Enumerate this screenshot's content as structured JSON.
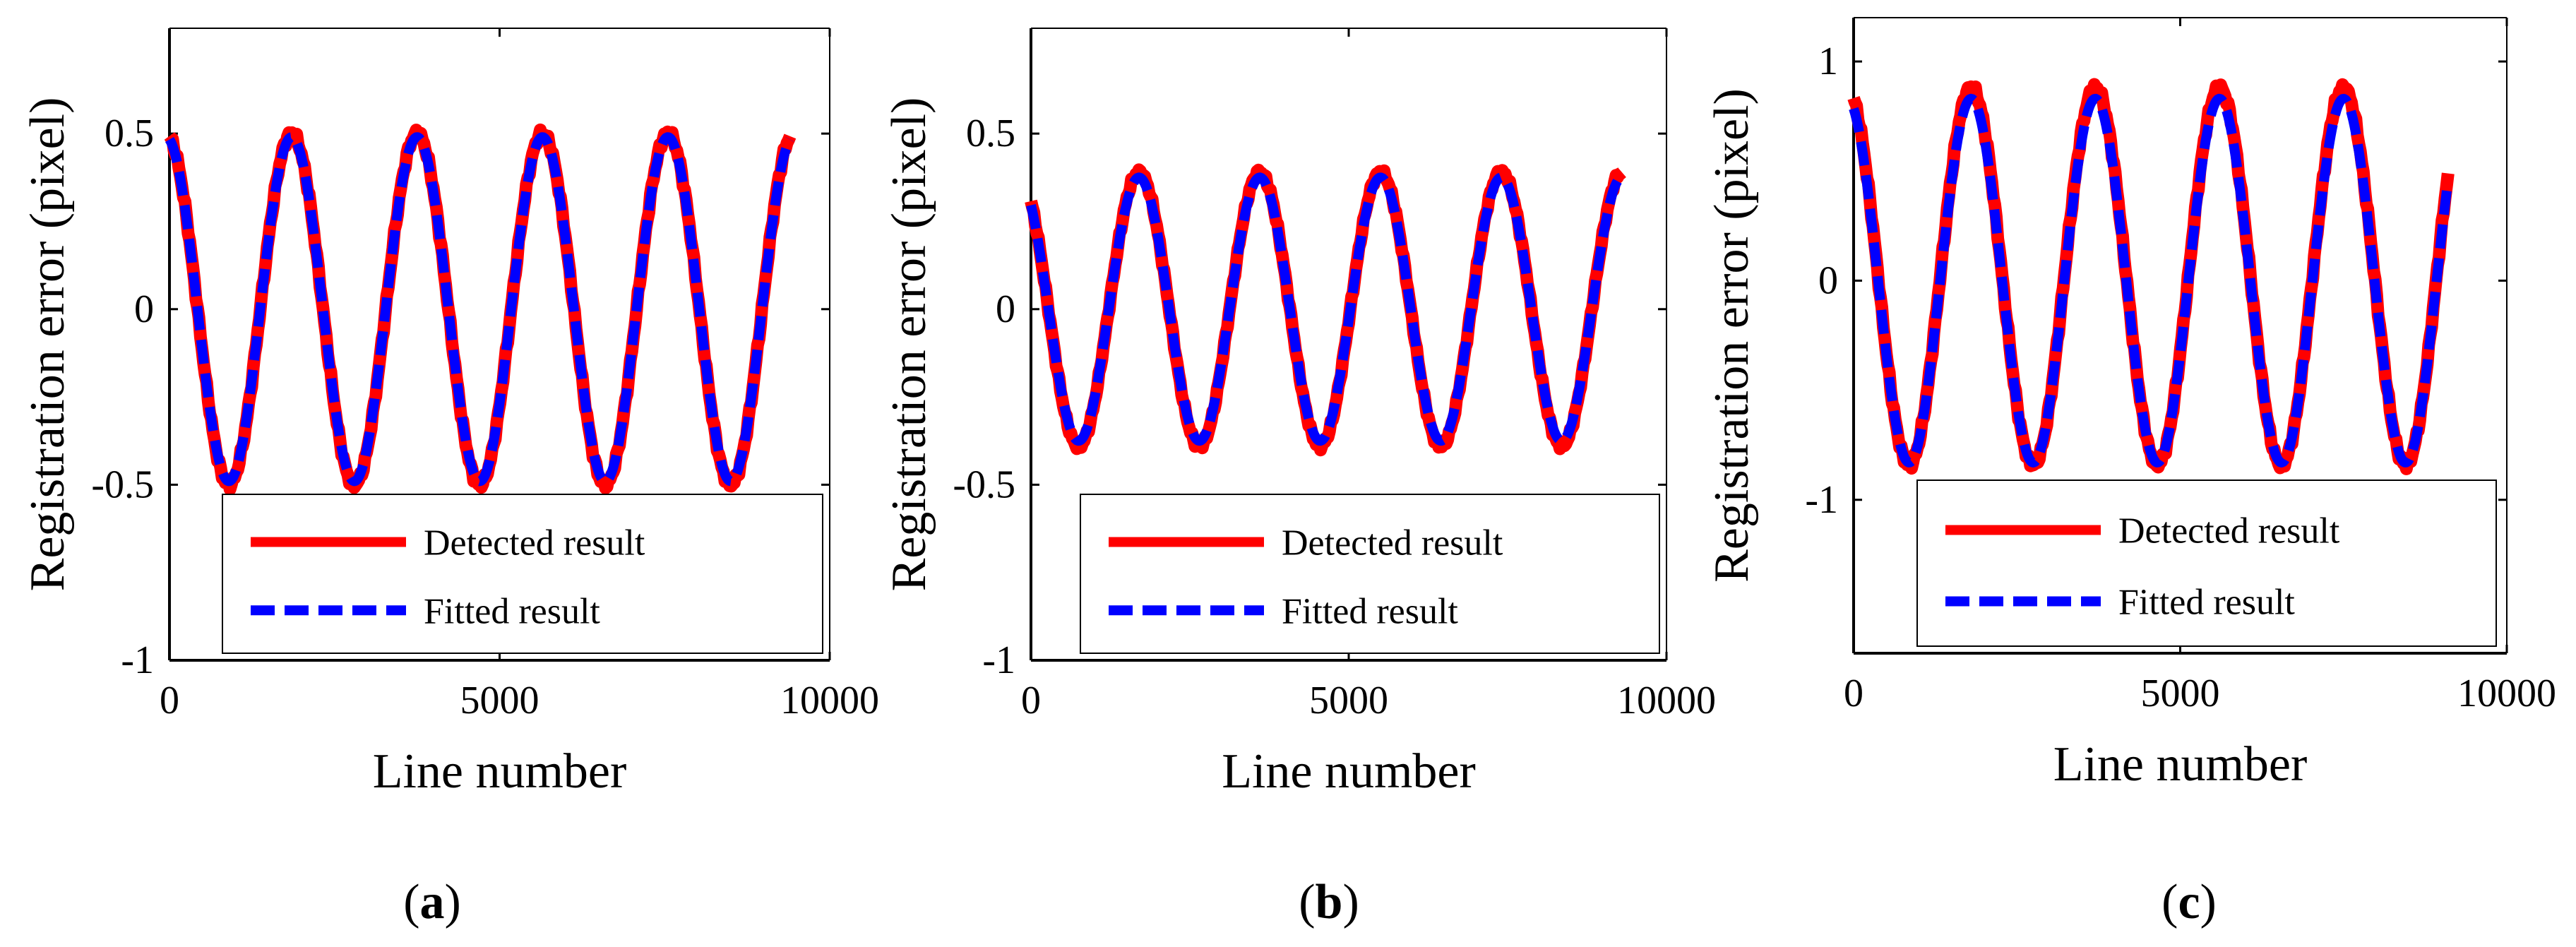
{
  "chart_data": [
    {
      "type": "line",
      "panel_label": "a",
      "xlabel": "Line number",
      "ylabel": "Registration error (pixel)",
      "xlim": [
        0,
        10000
      ],
      "ylim": [
        -1,
        0.8
      ],
      "xticks": [
        0,
        5000,
        10000
      ],
      "xtick_labels": [
        "0",
        "5000",
        "10000"
      ],
      "yticks": [
        -1,
        -0.5,
        0,
        0.5
      ],
      "ytick_labels": [
        "-1",
        "-0.5",
        "0",
        "0.5"
      ],
      "legend_position": "bottom",
      "x_range": [
        0,
        9400
      ],
      "series": [
        {
          "name": "Detected result",
          "color": "#ff0000",
          "style": "solid",
          "amplitude": 0.5,
          "period": 1900,
          "peak_x": 1850,
          "offset": 0.0,
          "noise": 0.015
        },
        {
          "name": "Fitted result",
          "color": "#0000ff",
          "style": "dashed",
          "amplitude": 0.49,
          "period": 1900,
          "peak_x": 1850,
          "offset": 0.0,
          "noise": 0
        }
      ]
    },
    {
      "type": "line",
      "panel_label": "b",
      "xlabel": "Line number",
      "ylabel": "Registration error (pixel)",
      "xlim": [
        0,
        10000
      ],
      "ylim": [
        -1,
        0.8
      ],
      "xticks": [
        0,
        5000,
        10000
      ],
      "xtick_labels": [
        "0",
        "5000",
        "10000"
      ],
      "yticks": [
        -1,
        -0.5,
        0,
        0.5
      ],
      "ytick_labels": [
        "-1",
        "-0.5",
        "0",
        "0.5"
      ],
      "legend_position": "bottom",
      "x_range": [
        0,
        9300
      ],
      "series": [
        {
          "name": "Detected result",
          "color": "#ff0000",
          "style": "solid",
          "amplitude": 0.39,
          "period": 1900,
          "peak_x": 1700,
          "offset": 0.0,
          "noise": 0.012
        },
        {
          "name": "Fitted result",
          "color": "#0000ff",
          "style": "dashed",
          "amplitude": 0.375,
          "period": 1900,
          "peak_x": 1700,
          "offset": 0.0,
          "noise": 0
        }
      ]
    },
    {
      "type": "line",
      "panel_label": "c",
      "xlabel": "Line number",
      "ylabel": "Registration error (pixel)",
      "xlim": [
        0,
        10000
      ],
      "ylim": [
        -1.7,
        1.2
      ],
      "xticks": [
        0,
        5000,
        10000
      ],
      "xtick_labels": [
        "0",
        "5000",
        "10000"
      ],
      "yticks": [
        -1,
        0,
        1
      ],
      "ytick_labels": [
        "-1",
        "0",
        "1"
      ],
      "legend_position": "bottom",
      "x_range": [
        0,
        9100
      ],
      "series": [
        {
          "name": "Detected result",
          "color": "#ff0000",
          "style": "solid",
          "amplitude": 0.86,
          "period": 1900,
          "peak_x": 1800,
          "offset": 0.02,
          "noise": 0.025
        },
        {
          "name": "Fitted result",
          "color": "#0000ff",
          "style": "dashed",
          "amplitude": 0.83,
          "period": 1900,
          "peak_x": 1800,
          "offset": 0.0,
          "noise": 0
        }
      ]
    }
  ]
}
